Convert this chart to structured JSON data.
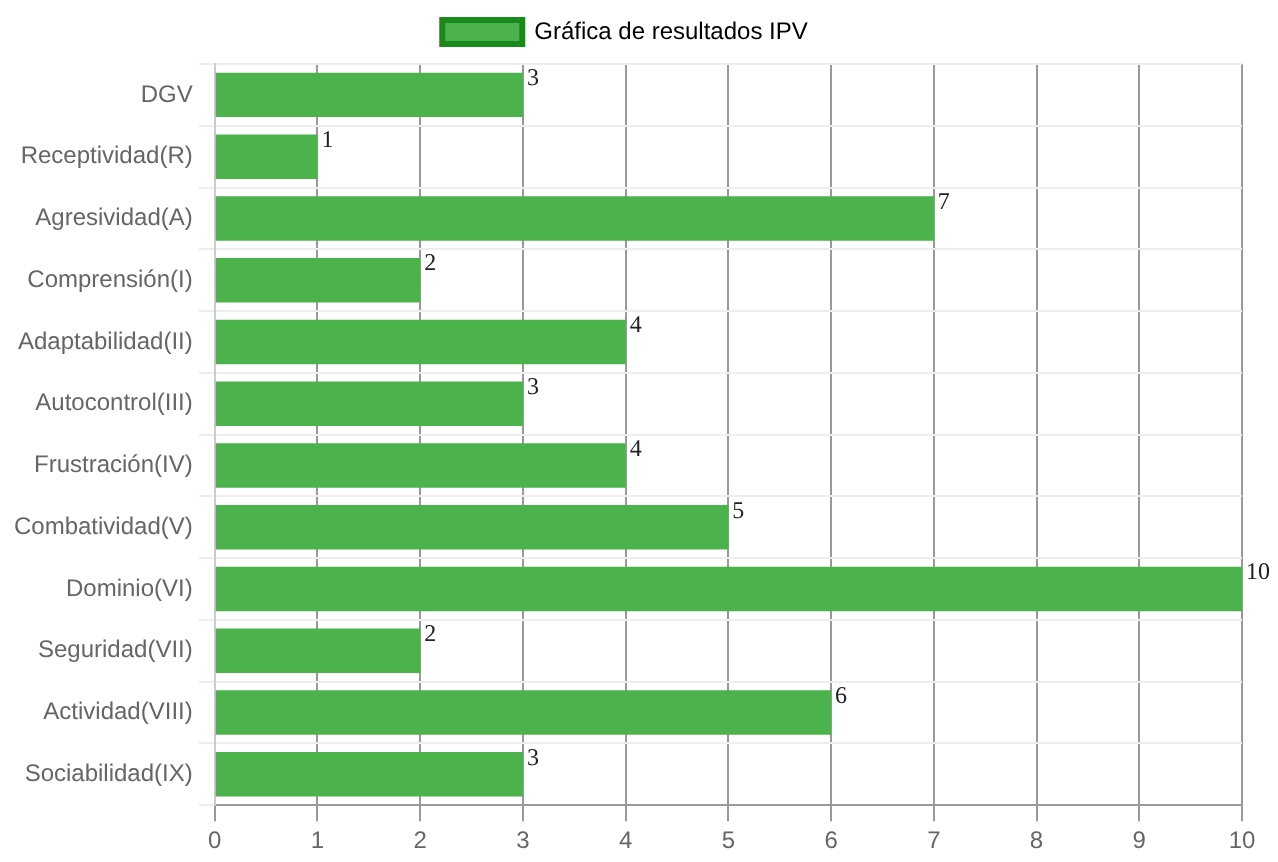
{
  "chart_data": {
    "type": "bar",
    "orientation": "horizontal",
    "categories": [
      "DGV",
      "Receptividad(R)",
      "Agresividad(A)",
      "Comprensión(I)",
      "Adaptabilidad(II)",
      "Autocontrol(III)",
      "Frustración(IV)",
      "Combatividad(V)",
      "Dominio(VI)",
      "Seguridad(VII)",
      "Actividad(VIII)",
      "Sociabilidad(IX)"
    ],
    "series": [
      {
        "name": "Gráfica de resultados IPV",
        "color": "#4cb34c",
        "values": [
          3,
          1,
          7,
          2,
          4,
          3,
          4,
          5,
          10,
          2,
          6,
          3
        ]
      }
    ],
    "xlim": [
      0,
      10
    ],
    "xticks": [
      0,
      1,
      2,
      3,
      4,
      5,
      6,
      7,
      8,
      9,
      10
    ],
    "grid": true,
    "legend": "top",
    "data_labels": true
  }
}
